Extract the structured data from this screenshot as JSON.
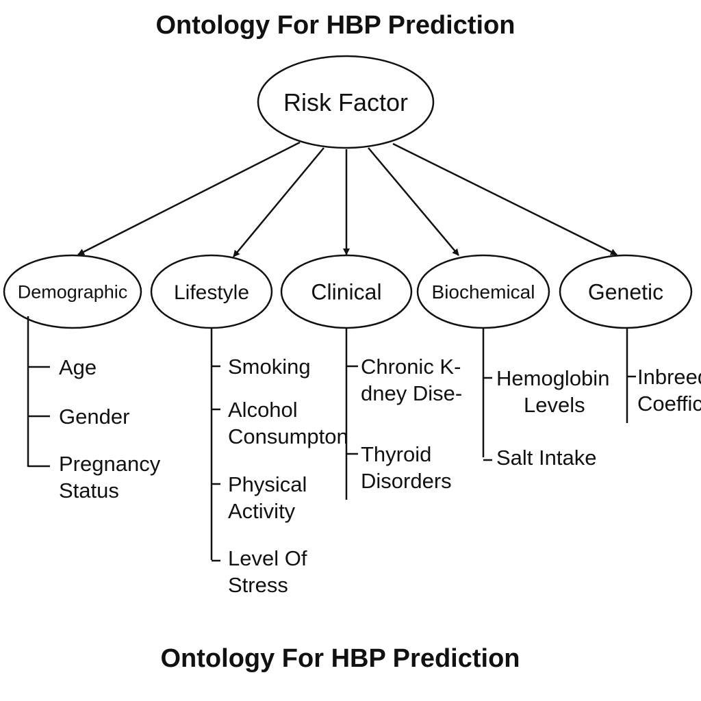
{
  "title_top": "Ontology For HBP Prediction",
  "title_bottom": "Ontology For HBP Prediction",
  "root": {
    "label": "Risk Factor"
  },
  "categories": [
    {
      "label": "Demographic",
      "items": [
        [
          "Age"
        ],
        [
          "Gender"
        ],
        [
          "Pregnancy",
          "Status"
        ]
      ]
    },
    {
      "label": "Lifestyle",
      "items": [
        [
          "Smoking"
        ],
        [
          "Alcohol",
          "Consumpton"
        ],
        [
          "Physical",
          "Activity"
        ],
        [
          "Level Of",
          "Stress"
        ]
      ]
    },
    {
      "label": "Clinical",
      "items": [
        [
          "Chronic K-",
          "dney Dise-"
        ],
        [
          "Thyroid",
          "Disorders"
        ]
      ]
    },
    {
      "label": "Biochemical",
      "items": [
        [
          "Hemoglobin",
          "Levels"
        ],
        [
          "Salt Intake"
        ]
      ]
    },
    {
      "label": "Genetic",
      "items": [
        [
          "Inbreeding",
          "Coefficient"
        ]
      ]
    }
  ],
  "colors": {
    "stroke": "#111111",
    "background": "#ffffff",
    "text": "#111111"
  }
}
